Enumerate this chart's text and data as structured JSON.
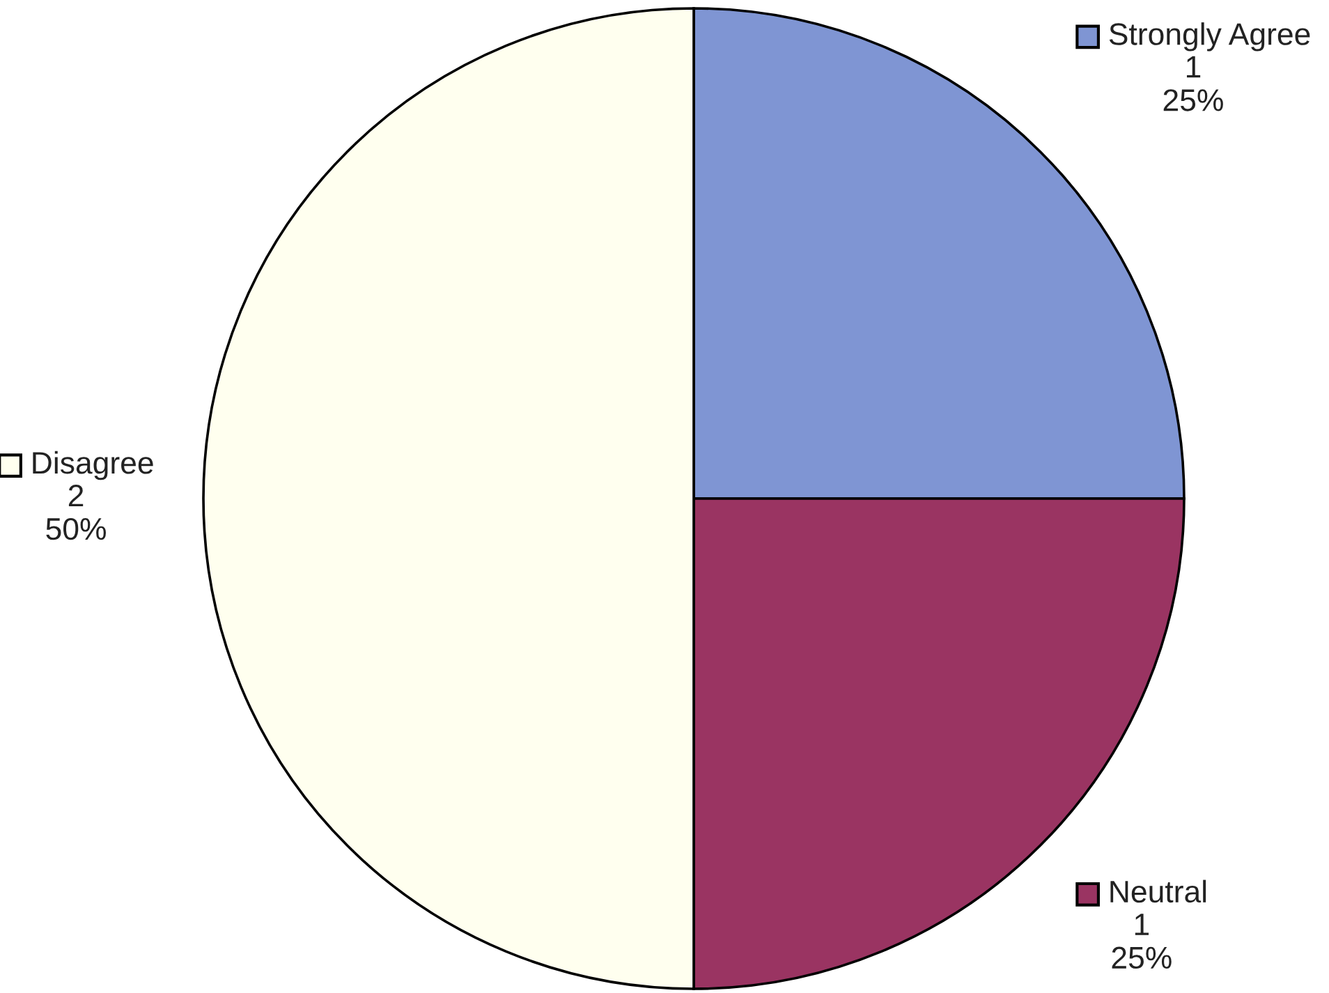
{
  "chart_data": {
    "type": "pie",
    "categories": [
      "Strongly Agree",
      "Neutral",
      "Disagree"
    ],
    "values": [
      1,
      1,
      2
    ],
    "colors": [
      "#7f95d3",
      "#9a3462",
      "#ffffef"
    ],
    "value_labels": [
      "1\n25%",
      "1\n25%",
      "2\n50%"
    ],
    "legend": "right"
  }
}
